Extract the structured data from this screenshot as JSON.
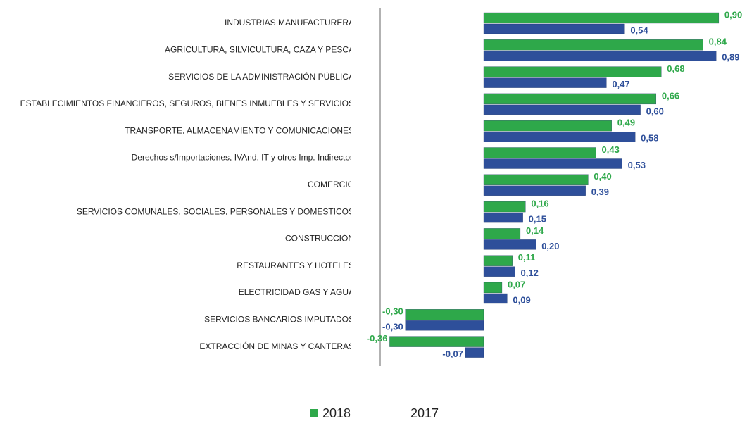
{
  "chart_data": {
    "type": "bar",
    "orientation": "horizontal",
    "categories": [
      "INDUSTRIAS  MANUFACTURERA",
      "AGRICULTURA, SILVICULTURA, CAZA Y PESCA",
      "SERVICIOS DE LA ADMINISTRACIÓN PÚBLICA",
      "ESTABLECIMIENTOS FINANCIEROS, SEGUROS, BIENES INMUEBLES Y SERVICIOS",
      "TRANSPORTE, ALMACENAMIENTO Y COMUNICACIONES",
      "Derechos s/Importaciones, IVAnd, IT y otros Imp. Indirectos",
      "COMERCIO",
      "SERVICIOS COMUNALES, SOCIALES, PERSONALES Y DOMESTICOS",
      "CONSTRUCCIÓN",
      "RESTAURANTES Y HOTELES",
      "ELECTRICIDAD GAS Y AGUA",
      "SERVICIOS BANCARIOS IMPUTADOS",
      "EXTRACCIÓN DE MINAS Y CANTERAS"
    ],
    "series": [
      {
        "name": "2018",
        "color": "#2ea84a",
        "values": [
          0.9,
          0.84,
          0.68,
          0.66,
          0.49,
          0.43,
          0.4,
          0.16,
          0.14,
          0.11,
          0.07,
          -0.3,
          -0.36
        ],
        "value_labels": [
          "0,90",
          "0,84",
          "0,68",
          "0,66",
          "0,49",
          "0,43",
          "0,40",
          "0,16",
          "0,14",
          "0,11",
          "0,07",
          "-0,30",
          "-0,36"
        ]
      },
      {
        "name": "2017",
        "color": "#2e4f9a",
        "values": [
          0.54,
          0.89,
          0.47,
          0.6,
          0.58,
          0.53,
          0.39,
          0.15,
          0.2,
          0.12,
          0.09,
          -0.3,
          -0.07
        ],
        "value_labels": [
          "0,54",
          "0,89",
          "0,47",
          "0,60",
          "0,58",
          "0,53",
          "0,39",
          "0,15",
          "0,20",
          "0,12",
          "0,09",
          "-0,30",
          "-0,07"
        ]
      }
    ],
    "legend": "bottom"
  }
}
